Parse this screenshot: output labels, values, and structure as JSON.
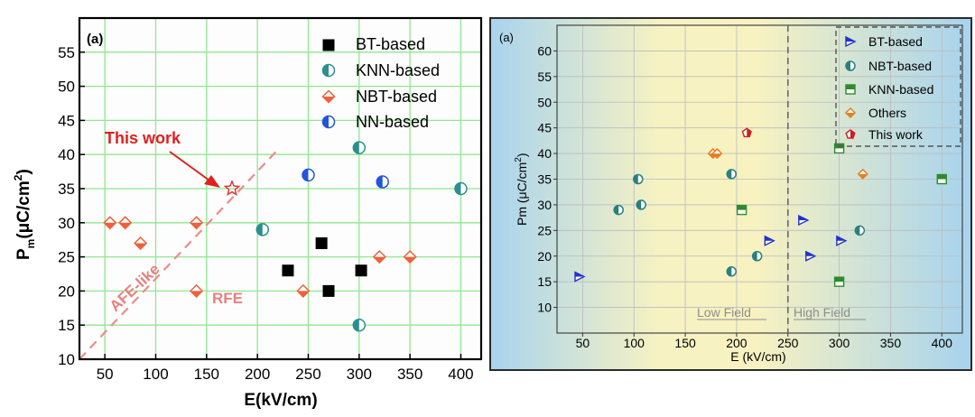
{
  "chart_data": [
    {
      "type": "scatter",
      "panel_label": "(a)",
      "title": "",
      "xlabel": "E(kV/cm)",
      "ylabel": "P",
      "ylabel_sub": "m",
      "ylabel_unit": "(μC/cm",
      "ylabel_sup": "2",
      "ylabel_close": ")",
      "xlim": [
        25,
        420
      ],
      "ylim": [
        10,
        60
      ],
      "xticks": [
        50,
        100,
        150,
        200,
        250,
        300,
        350,
        400
      ],
      "yticks": [
        10,
        15,
        20,
        25,
        30,
        35,
        40,
        45,
        50,
        55
      ],
      "grid": true,
      "legend_position": "top-right",
      "series": [
        {
          "name": "BT-based",
          "marker": "square",
          "color": "#000000",
          "points": [
            [
              230,
              23
            ],
            [
              263,
              27
            ],
            [
              270,
              20
            ],
            [
              302,
              23
            ]
          ]
        },
        {
          "name": "KNN-based",
          "marker": "half-circle",
          "color": "#2a8f8f",
          "points": [
            [
              205,
              29
            ],
            [
              300,
              41
            ],
            [
              300,
              15
            ],
            [
              400,
              35
            ]
          ]
        },
        {
          "name": "NBT-based",
          "marker": "half-diamond",
          "color": "#f0603a",
          "points": [
            [
              55,
              30
            ],
            [
              70,
              30
            ],
            [
              85,
              27
            ],
            [
              140,
              30
            ],
            [
              140,
              20
            ],
            [
              245,
              20
            ],
            [
              320,
              25
            ],
            [
              350,
              25
            ]
          ]
        },
        {
          "name": "NN-based",
          "marker": "half-circle",
          "color": "#2255dd",
          "points": [
            [
              250,
              37
            ],
            [
              323,
              36
            ]
          ]
        },
        {
          "name": "This work",
          "marker": "star",
          "color": "#e03030",
          "points": [
            [
              175,
              35
            ]
          ]
        }
      ],
      "annotations": [
        {
          "text": "This work",
          "color": "#e02020"
        },
        {
          "text": "AFE-like",
          "color": "#e88080"
        },
        {
          "text": "RFE",
          "color": "#e88080"
        }
      ]
    },
    {
      "type": "scatter",
      "panel_label": "(a)",
      "title": "",
      "xlabel": "E (kV/cm)",
      "ylabel": "Pm (μC/cm",
      "ylabel_sup": "2",
      "ylabel_close": ")",
      "xlim": [
        25,
        420
      ],
      "ylim": [
        5,
        65
      ],
      "xticks": [
        50,
        100,
        150,
        200,
        250,
        300,
        350,
        400
      ],
      "yticks": [
        10,
        15,
        20,
        25,
        30,
        35,
        40,
        45,
        50,
        55,
        60
      ],
      "grid": true,
      "legend_position": "top-right",
      "regions": [
        {
          "label": "Low Field",
          "range": [
            25,
            250
          ]
        },
        {
          "label": "High Field",
          "range": [
            250,
            420
          ]
        }
      ],
      "divider_x": 250,
      "series": [
        {
          "name": "BT-based",
          "marker": "right-triangle",
          "color": "#2233cc",
          "points": [
            [
              47,
              16
            ],
            [
              232,
              23
            ],
            [
              265,
              27
            ],
            [
              272,
              20
            ],
            [
              302,
              23
            ]
          ]
        },
        {
          "name": "NBT-based",
          "marker": "half-circle",
          "color": "#2a7f7f",
          "points": [
            [
              85,
              29
            ],
            [
              104,
              35
            ],
            [
              107,
              30
            ],
            [
              195,
              36
            ],
            [
              195,
              17
            ],
            [
              220,
              20
            ],
            [
              320,
              25
            ]
          ]
        },
        {
          "name": "KNN-based",
          "marker": "half-square",
          "color": "#2e8b2e",
          "points": [
            [
              205,
              29
            ],
            [
              300,
              41
            ],
            [
              300,
              15
            ],
            [
              400,
              35
            ]
          ]
        },
        {
          "name": "Others",
          "marker": "half-diamond",
          "color": "#e67e22",
          "points": [
            [
              177,
              40
            ],
            [
              181,
              40
            ],
            [
              323,
              36
            ]
          ]
        },
        {
          "name": "This work",
          "marker": "pentagon",
          "color": "#cc1f1f",
          "points": [
            [
              210,
              44
            ]
          ]
        }
      ]
    }
  ]
}
